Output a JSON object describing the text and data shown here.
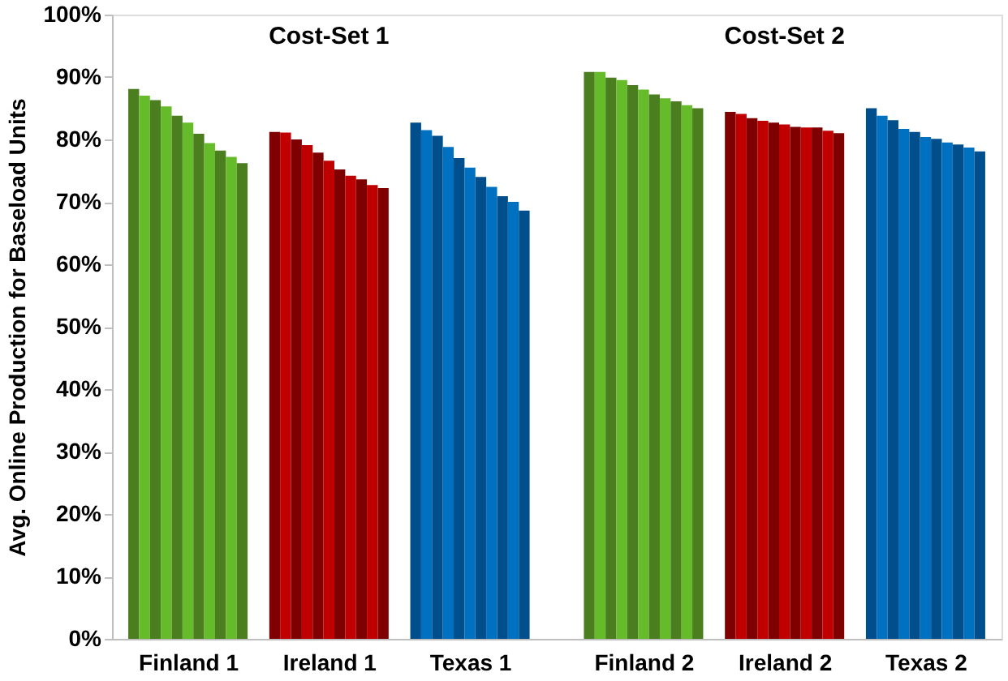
{
  "chart_data": {
    "type": "bar",
    "ylabel": "Avg. Online Production for Baseload Units",
    "categories": [
      "Finland 1",
      "Ireland 1",
      "Texas 1",
      "Finland 2",
      "Ireland 2",
      "Texas 2"
    ],
    "series": [
      {
        "colors": [
          "#4a7e1e",
          "#7f0000",
          "#004e8c",
          "#4a7e1e",
          "#7f0000",
          "#004e8c"
        ],
        "values": [
          88.1,
          81.2,
          82.7,
          90.8,
          84.4,
          85.0
        ]
      },
      {
        "colors": [
          "#66bb2a",
          "#c00000",
          "#0070c0",
          "#66bb2a",
          "#c00000",
          "#0070c0"
        ],
        "values": [
          87.0,
          81.1,
          81.5,
          90.8,
          84.1,
          83.8
        ]
      },
      {
        "colors": [
          "#4a7e1e",
          "#7f0000",
          "#004e8c",
          "#4a7e1e",
          "#7f0000",
          "#004e8c"
        ],
        "values": [
          86.3,
          80.0,
          80.6,
          89.9,
          83.4,
          83.1
        ]
      },
      {
        "colors": [
          "#66bb2a",
          "#c00000",
          "#0070c0",
          "#66bb2a",
          "#c00000",
          "#0070c0"
        ],
        "values": [
          85.3,
          79.1,
          78.8,
          89.5,
          83.0,
          81.7
        ]
      },
      {
        "colors": [
          "#4a7e1e",
          "#7f0000",
          "#004e8c",
          "#4a7e1e",
          "#7f0000",
          "#004e8c"
        ],
        "values": [
          83.8,
          77.9,
          77.0,
          88.7,
          82.7,
          81.2
        ]
      },
      {
        "colors": [
          "#66bb2a",
          "#c00000",
          "#0070c0",
          "#66bb2a",
          "#c00000",
          "#0070c0"
        ],
        "values": [
          82.7,
          76.6,
          75.5,
          88.0,
          82.4,
          80.4
        ]
      },
      {
        "colors": [
          "#4a7e1e",
          "#7f0000",
          "#004e8c",
          "#4a7e1e",
          "#7f0000",
          "#004e8c"
        ],
        "values": [
          80.9,
          75.2,
          74.0,
          87.2,
          82.0,
          80.1
        ]
      },
      {
        "colors": [
          "#66bb2a",
          "#c00000",
          "#0070c0",
          "#66bb2a",
          "#c00000",
          "#0070c0"
        ],
        "values": [
          79.4,
          74.2,
          72.4,
          86.6,
          81.9,
          79.5
        ]
      },
      {
        "colors": [
          "#4a7e1e",
          "#7f0000",
          "#004e8c",
          "#4a7e1e",
          "#7f0000",
          "#004e8c"
        ],
        "values": [
          78.2,
          73.6,
          70.9,
          86.1,
          81.9,
          79.2
        ]
      },
      {
        "colors": [
          "#66bb2a",
          "#c00000",
          "#0070c0",
          "#66bb2a",
          "#c00000",
          "#0070c0"
        ],
        "values": [
          77.2,
          72.7,
          70.0,
          85.5,
          81.4,
          78.7
        ]
      },
      {
        "colors": [
          "#4a7e1e",
          "#7f0000",
          "#004e8c",
          "#4a7e1e",
          "#7f0000",
          "#004e8c"
        ],
        "values": [
          76.2,
          72.2,
          68.6,
          85.0,
          81.0,
          78.1
        ]
      }
    ],
    "ylim": [
      0,
      100
    ],
    "yticks": [
      {
        "value": 0,
        "label": "0%"
      },
      {
        "value": 10,
        "label": "10%"
      },
      {
        "value": 20,
        "label": "20%"
      },
      {
        "value": 30,
        "label": "30%"
      },
      {
        "value": 40,
        "label": "40%"
      },
      {
        "value": 50,
        "label": "50%"
      },
      {
        "value": 60,
        "label": "60%"
      },
      {
        "value": 70,
        "label": "70%"
      },
      {
        "value": 80,
        "label": "80%"
      },
      {
        "value": 90,
        "label": "90%"
      },
      {
        "value": 100,
        "label": "100%"
      }
    ],
    "annotations": [
      "Cost-Set 1",
      "Cost-Set 2"
    ],
    "grid": false
  }
}
